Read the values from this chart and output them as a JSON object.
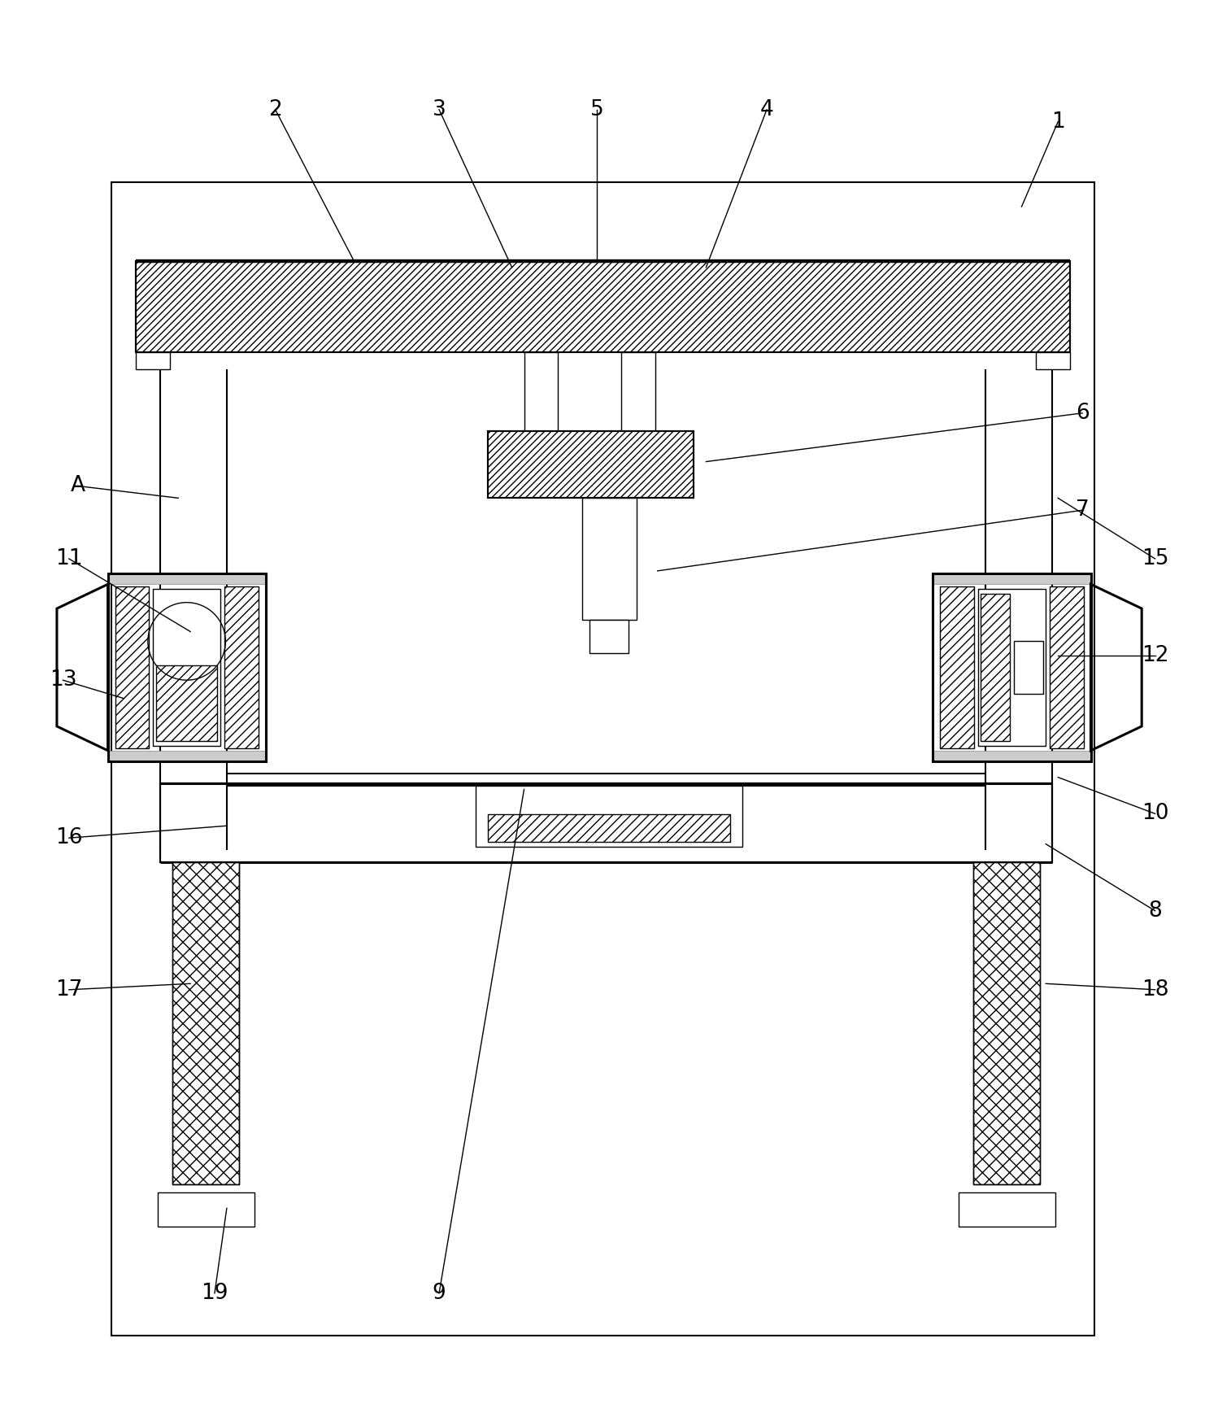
{
  "bg_color": "#ffffff",
  "line_color": "#000000",
  "fig_width": 14.98,
  "fig_height": 17.47,
  "dpi": 100
}
